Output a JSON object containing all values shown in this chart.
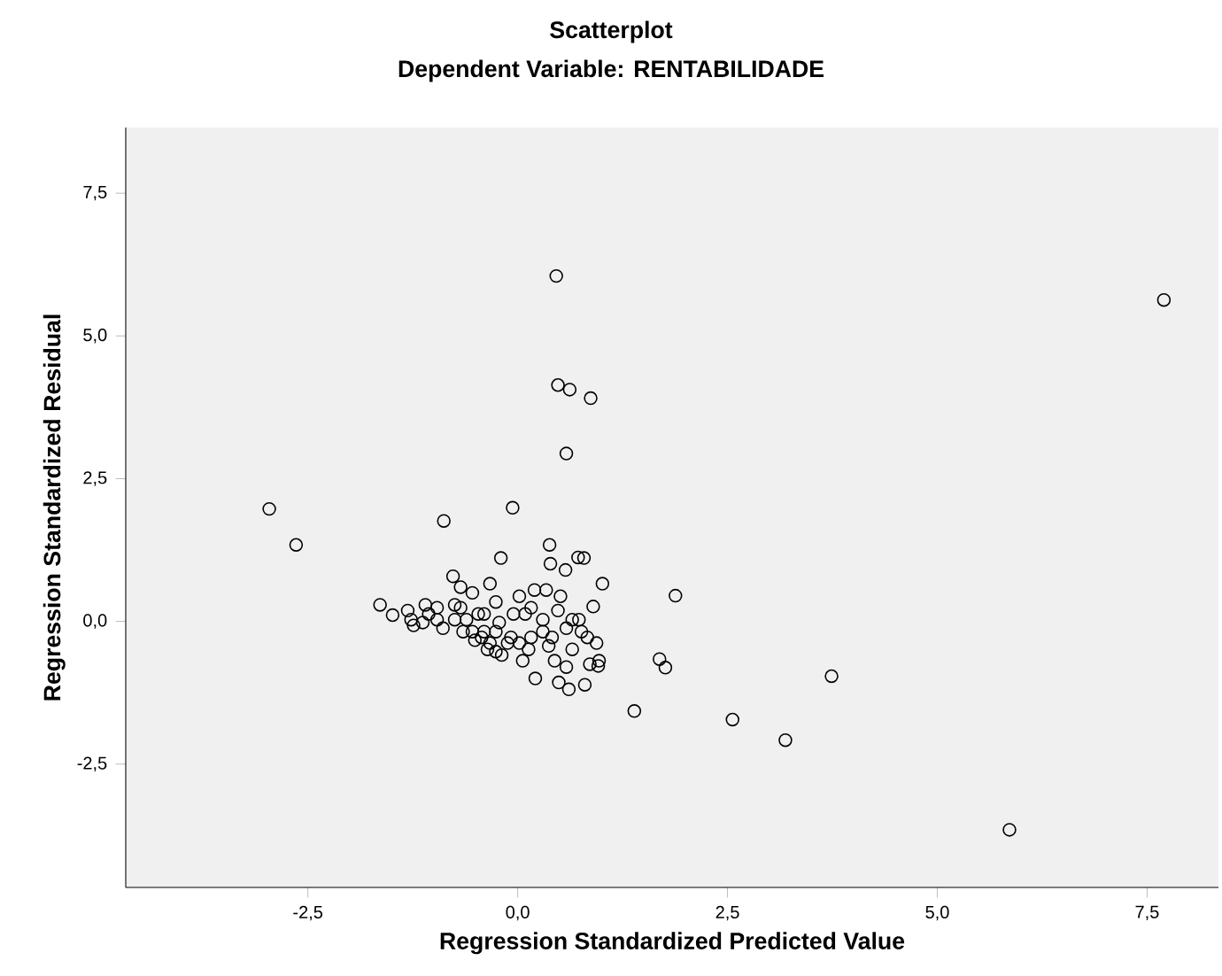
{
  "chart_data": {
    "type": "scatter",
    "title": "Scatterplot",
    "subtitle": "Dependent Variable: RENTABILIDADE",
    "xlabel": "Regression Standardized Predicted Value",
    "ylabel": "Regression Standardized Residual",
    "marker": "circle",
    "color": "#000000",
    "xlim": [
      -4.67,
      8.35
    ],
    "ylim": [
      -4.66,
      8.65
    ],
    "xticks": [
      {
        "value": -2.5,
        "label": "-2,5"
      },
      {
        "value": 0,
        "label": "0,0"
      },
      {
        "value": 2.5,
        "label": "2,5"
      },
      {
        "value": 5,
        "label": "5,0"
      },
      {
        "value": 7.5,
        "label": "7,5"
      }
    ],
    "yticks": [
      {
        "value": -2.5,
        "label": "-2,5"
      },
      {
        "value": 0,
        "label": "0,0"
      },
      {
        "value": 2.5,
        "label": "2,5"
      },
      {
        "value": 5,
        "label": "5,0"
      },
      {
        "value": 7.5,
        "label": "7,5"
      }
    ],
    "x": [
      0.46,
      7.7,
      0.48,
      0.62,
      0.87,
      0.58,
      -2.96,
      -2.64,
      -0.88,
      -0.06,
      -0.2,
      0.38,
      0.39,
      0.72,
      0.79,
      0.57,
      1.01,
      -0.77,
      -0.33,
      1.88,
      0.9,
      -1.64,
      1.69,
      1.76,
      3.74,
      1.39,
      2.56,
      3.19,
      5.86,
      0.21,
      0.61,
      0.49,
      0.96,
      -1.49,
      -1.31,
      -1.27,
      -1.1,
      -1.06,
      -1.13,
      -0.96,
      -0.89,
      -0.68,
      -0.75,
      -0.65,
      -0.54,
      -0.47,
      -0.43,
      -0.33,
      -0.26,
      -0.22,
      -0.19,
      -0.08,
      0.02,
      0.09,
      0.13,
      0.2,
      0.3,
      0.34,
      0.41,
      0.44,
      0.48,
      0.51,
      0.58,
      0.65,
      0.73,
      0.83,
      0.86,
      0.94,
      0.97,
      -0.54,
      -0.4,
      -0.26,
      -0.12,
      0.02,
      0.16,
      0.06,
      -0.26,
      -0.75,
      -0.61,
      -0.96,
      -1.24,
      0.65,
      0.76,
      0.3,
      0.37,
      0.58,
      0.8,
      0.16,
      -0.4,
      -0.68,
      -0.05,
      -0.51,
      -0.36
    ],
    "values": [
      6.05,
      5.63,
      4.14,
      4.06,
      3.91,
      2.94,
      1.97,
      1.34,
      1.76,
      1.99,
      1.11,
      1.34,
      1.01,
      1.12,
      1.11,
      0.9,
      0.66,
      0.79,
      0.66,
      0.45,
      0.26,
      0.29,
      -0.66,
      -0.81,
      -0.96,
      -1.57,
      -1.72,
      -2.08,
      -3.65,
      -1.0,
      -1.19,
      -1.07,
      -0.78,
      0.11,
      0.19,
      0.03,
      0.29,
      0.13,
      -0.02,
      0.03,
      -0.12,
      0.6,
      0.29,
      -0.18,
      0.5,
      0.13,
      -0.28,
      -0.38,
      0.34,
      -0.02,
      -0.59,
      -0.28,
      0.44,
      0.13,
      -0.49,
      0.55,
      0.03,
      0.55,
      -0.28,
      -0.69,
      0.19,
      0.44,
      -0.12,
      -0.49,
      0.03,
      -0.28,
      -0.75,
      -0.38,
      -0.69,
      -0.18,
      -0.18,
      -0.18,
      -0.38,
      -0.38,
      -0.28,
      -0.69,
      -0.53,
      0.03,
      0.03,
      0.24,
      -0.07,
      0.03,
      -0.18,
      -0.18,
      -0.43,
      -0.8,
      -1.11,
      0.24,
      0.13,
      0.24,
      0.13,
      -0.33,
      -0.49
    ]
  }
}
